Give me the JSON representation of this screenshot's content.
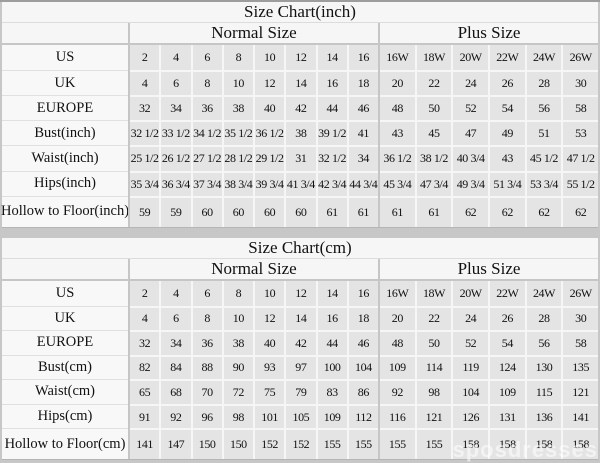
{
  "watermark": "sposdresses",
  "colors": {
    "page_background": "#c7c7c7",
    "table_background": "#f6f6f6",
    "label_cell_background": "#f8f8f8",
    "data_cell_background": "#e4e4e4",
    "grid_line": "#f6f6f6",
    "divider_line": "#c6c6c6",
    "text": "#111111"
  },
  "chart_data": [
    {
      "type": "table",
      "title": "Size Chart(inch)",
      "group_headers": [
        "Normal Size",
        "Plus Size"
      ],
      "rows": [
        {
          "label": "US",
          "normal": [
            "2",
            "4",
            "6",
            "8",
            "10",
            "12",
            "14",
            "16"
          ],
          "plus": [
            "16W",
            "18W",
            "20W",
            "22W",
            "24W",
            "26W"
          ]
        },
        {
          "label": "UK",
          "normal": [
            "4",
            "6",
            "8",
            "10",
            "12",
            "14",
            "16",
            "18"
          ],
          "plus": [
            "20",
            "22",
            "24",
            "26",
            "28",
            "30"
          ]
        },
        {
          "label": "EUROPE",
          "normal": [
            "32",
            "34",
            "36",
            "38",
            "40",
            "42",
            "44",
            "46"
          ],
          "plus": [
            "48",
            "50",
            "52",
            "54",
            "56",
            "58"
          ]
        },
        {
          "label": "Bust(inch)",
          "normal": [
            "32 1/2",
            "33 1/2",
            "34 1/2",
            "35 1/2",
            "36 1/2",
            "38",
            "39 1/2",
            "41"
          ],
          "plus": [
            "43",
            "45",
            "47",
            "49",
            "51",
            "53"
          ]
        },
        {
          "label": "Waist(inch)",
          "normal": [
            "25 1/2",
            "26 1/2",
            "27 1/2",
            "28 1/2",
            "29 1/2",
            "31",
            "32 1/2",
            "34"
          ],
          "plus": [
            "36 1/2",
            "38 1/2",
            "40 3/4",
            "43",
            "45 1/2",
            "47 1/2"
          ]
        },
        {
          "label": "Hips(inch)",
          "normal": [
            "35 3/4",
            "36 3/4",
            "37 3/4",
            "38 3/4",
            "39 3/4",
            "41 3/4",
            "42 3/4",
            "44 3/4"
          ],
          "plus": [
            "45 3/4",
            "47 3/4",
            "49 3/4",
            "51 3/4",
            "53 3/4",
            "55 1/2"
          ]
        },
        {
          "label": "Hollow to Floor(inch)",
          "normal": [
            "59",
            "59",
            "60",
            "60",
            "60",
            "60",
            "61",
            "61"
          ],
          "plus": [
            "61",
            "61",
            "62",
            "62",
            "62",
            "62"
          ]
        }
      ]
    },
    {
      "type": "table",
      "title": "Size Chart(cm)",
      "group_headers": [
        "Normal Size",
        "Plus Size"
      ],
      "rows": [
        {
          "label": "US",
          "normal": [
            "2",
            "4",
            "6",
            "8",
            "10",
            "12",
            "14",
            "16"
          ],
          "plus": [
            "16W",
            "18W",
            "20W",
            "22W",
            "24W",
            "26W"
          ]
        },
        {
          "label": "UK",
          "normal": [
            "4",
            "6",
            "8",
            "10",
            "12",
            "14",
            "16",
            "18"
          ],
          "plus": [
            "20",
            "22",
            "24",
            "26",
            "28",
            "30"
          ]
        },
        {
          "label": "EUROPE",
          "normal": [
            "32",
            "34",
            "36",
            "38",
            "40",
            "42",
            "44",
            "46"
          ],
          "plus": [
            "48",
            "50",
            "52",
            "54",
            "56",
            "58"
          ]
        },
        {
          "label": "Bust(cm)",
          "normal": [
            "82",
            "84",
            "88",
            "90",
            "93",
            "97",
            "100",
            "104"
          ],
          "plus": [
            "109",
            "114",
            "119",
            "124",
            "130",
            "135"
          ]
        },
        {
          "label": "Waist(cm)",
          "normal": [
            "65",
            "68",
            "70",
            "72",
            "75",
            "79",
            "83",
            "86"
          ],
          "plus": [
            "92",
            "98",
            "104",
            "109",
            "115",
            "121"
          ]
        },
        {
          "label": "Hips(cm)",
          "normal": [
            "91",
            "92",
            "96",
            "98",
            "101",
            "105",
            "109",
            "112"
          ],
          "plus": [
            "116",
            "121",
            "126",
            "131",
            "136",
            "141"
          ]
        },
        {
          "label": "Hollow to Floor(cm)",
          "normal": [
            "141",
            "147",
            "150",
            "150",
            "152",
            "152",
            "155",
            "155"
          ],
          "plus": [
            "155",
            "155",
            "158",
            "158",
            "158",
            "158"
          ]
        }
      ]
    }
  ]
}
